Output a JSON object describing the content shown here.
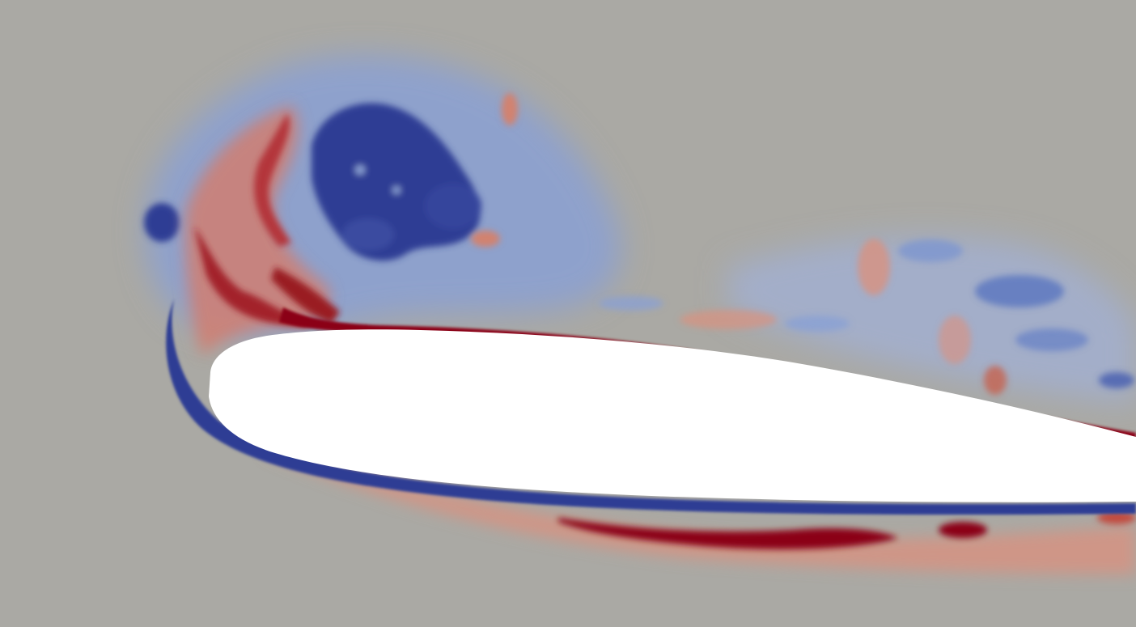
{
  "visualization": {
    "kind": "vorticity-field",
    "subject": "airfoil",
    "colors": {
      "background": "#aaa9a4",
      "positive": "#8b0013",
      "positive_soft": "#d8917f",
      "negative": "#2f3e94",
      "negative_soft": "#7f97cf",
      "body": "#ffffff"
    }
  }
}
